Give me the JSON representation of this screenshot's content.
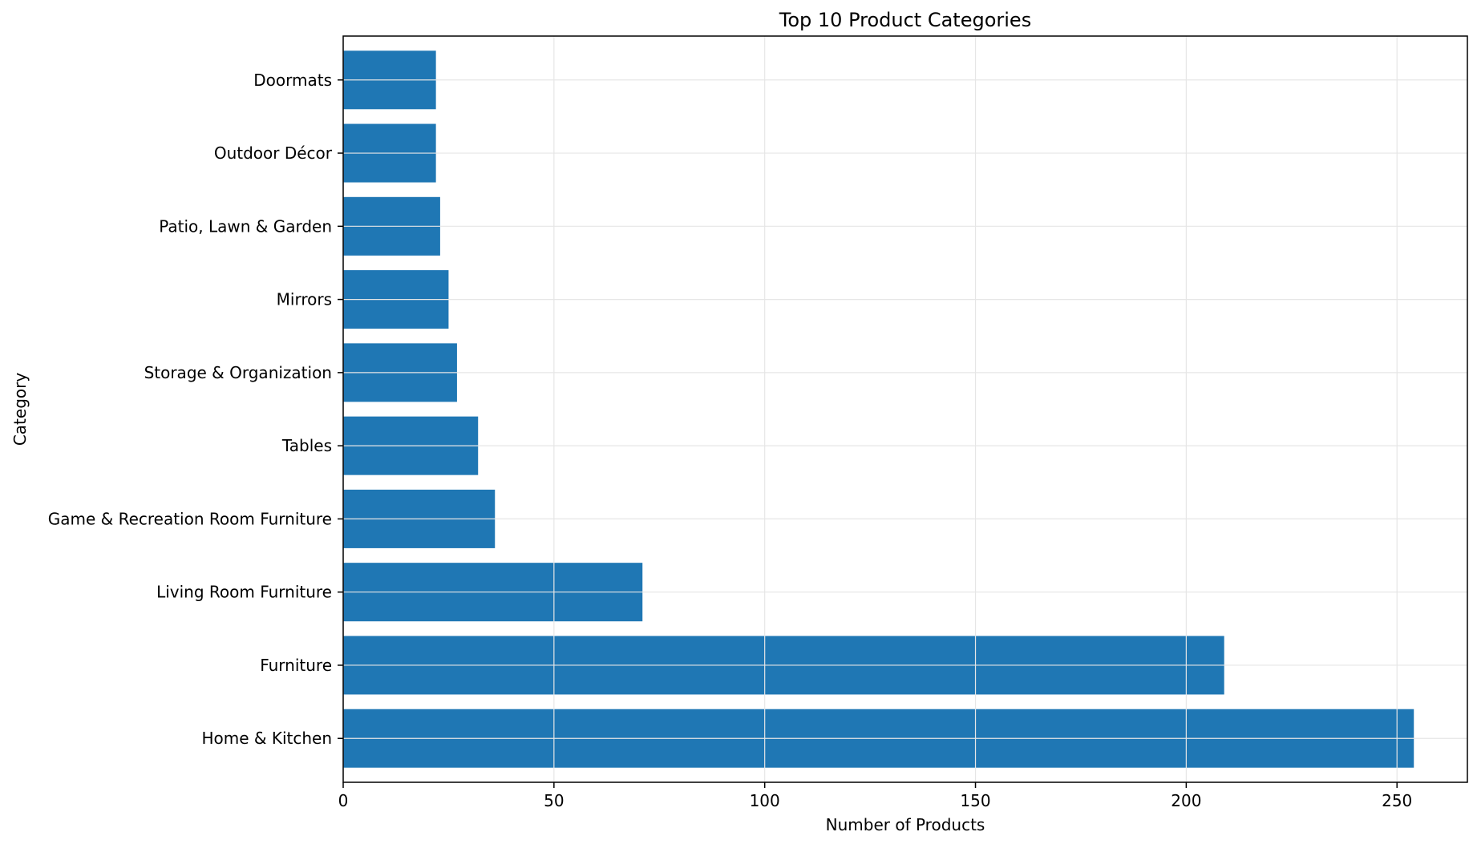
{
  "chart_data": {
    "type": "bar",
    "orientation": "horizontal",
    "title": "Top 10 Product Categories",
    "xlabel": "Number of Products",
    "ylabel": "Category",
    "categories": [
      "Home & Kitchen",
      "Furniture",
      "Living Room Furniture",
      "Game & Recreation Room Furniture",
      "Tables",
      "Storage & Organization",
      "Mirrors",
      "Patio, Lawn & Garden",
      "Outdoor Décor",
      "Doormats"
    ],
    "values": [
      254,
      209,
      71,
      36,
      32,
      27,
      25,
      23,
      22,
      22
    ],
    "xlim": [
      0,
      266.7
    ],
    "xticks": [
      0,
      50,
      100,
      150,
      200,
      250
    ],
    "grid": true,
    "colors": {
      "bar": "#1f77b4",
      "grid": "#e6e6e6",
      "axis": "#000000"
    }
  }
}
